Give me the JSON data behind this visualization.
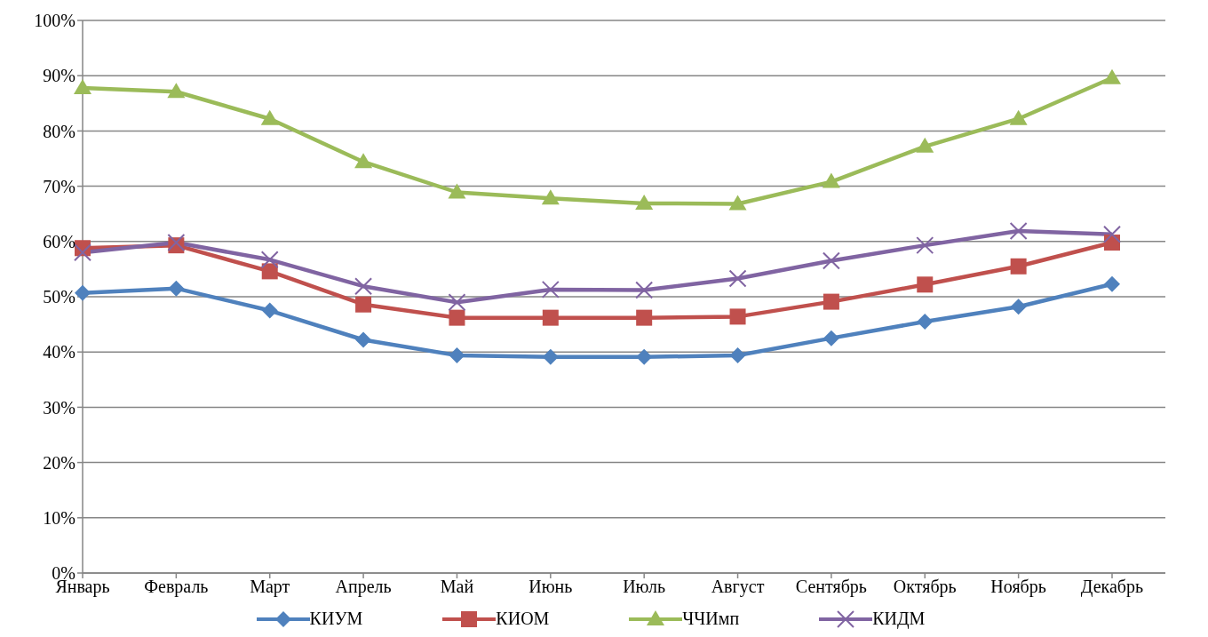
{
  "chart_data": {
    "type": "line",
    "categories": [
      "Январь",
      "Февраль",
      "Март",
      "Апрель",
      "Май",
      "Июнь",
      "Июль",
      "Август",
      "Сентябрь",
      "Октябрь",
      "Ноябрь",
      "Декабрь"
    ],
    "series": [
      {
        "name": "КИУМ",
        "color": "#4f81bd",
        "marker": "diamond",
        "values": [
          50.7,
          51.5,
          47.5,
          42.2,
          39.4,
          39.1,
          39.1,
          39.4,
          42.5,
          45.5,
          48.2,
          52.3
        ]
      },
      {
        "name": "КИОМ",
        "color": "#c0504d",
        "marker": "square",
        "values": [
          58.8,
          59.3,
          54.6,
          48.6,
          46.2,
          46.2,
          46.2,
          46.4,
          49.1,
          52.2,
          55.5,
          59.8
        ]
      },
      {
        "name": "ЧЧИмп",
        "color": "#9bbb59",
        "marker": "triangle",
        "values": [
          87.8,
          87.1,
          82.2,
          74.4,
          68.9,
          67.8,
          66.9,
          66.8,
          70.8,
          77.2,
          82.2,
          89.6
        ]
      },
      {
        "name": "КИДМ",
        "color": "#8064a2",
        "marker": "cross",
        "values": [
          58.0,
          59.8,
          56.7,
          51.9,
          49.0,
          51.3,
          51.2,
          53.3,
          56.5,
          59.3,
          61.9,
          61.3
        ]
      }
    ],
    "ylim": [
      0,
      100
    ],
    "yticks": [
      {
        "value": 0,
        "label": "0%"
      },
      {
        "value": 10,
        "label": "10%"
      },
      {
        "value": 20,
        "label": "20%"
      },
      {
        "value": 30,
        "label": "30%"
      },
      {
        "value": 40,
        "label": "40%"
      },
      {
        "value": 50,
        "label": "50%"
      },
      {
        "value": 60,
        "label": "60%"
      },
      {
        "value": 70,
        "label": "70%"
      },
      {
        "value": 80,
        "label": "80%"
      },
      {
        "value": 90,
        "label": "90%"
      },
      {
        "value": 100,
        "label": "100%"
      }
    ],
    "grid": "y",
    "legend": "bottom",
    "line_style": "solid"
  }
}
